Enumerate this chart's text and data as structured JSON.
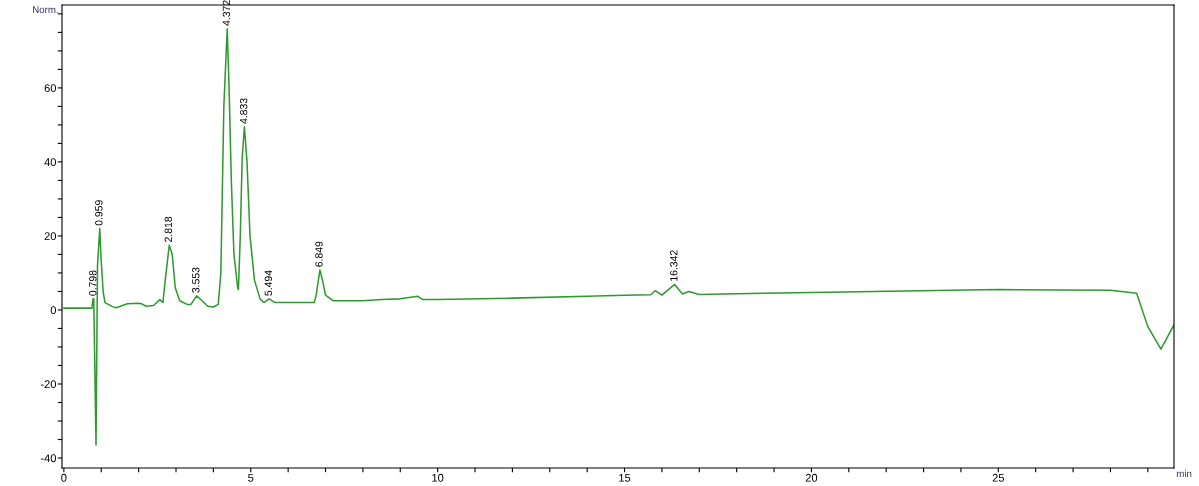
{
  "chart_data": {
    "type": "line",
    "ylabel": "Norm.",
    "xlabel": "min",
    "xlim": [
      -0.05,
      29.7
    ],
    "ylim": [
      -42.7,
      82.4
    ],
    "xticks": [
      0,
      {
        "value": 1,
        "label": null
      },
      {
        "value": 2,
        "label": null
      },
      {
        "value": 3,
        "label": null
      },
      {
        "value": 4,
        "label": null
      },
      5,
      {
        "value": 6,
        "label": null
      },
      {
        "value": 7,
        "label": null
      },
      {
        "value": 8,
        "label": null
      },
      {
        "value": 9,
        "label": null
      },
      10,
      {
        "value": 11,
        "label": null
      },
      {
        "value": 12,
        "label": null
      },
      {
        "value": 13,
        "label": null
      },
      {
        "value": 14,
        "label": null
      },
      15,
      {
        "value": 16,
        "label": null
      },
      {
        "value": 17,
        "label": null
      },
      {
        "value": 18,
        "label": null
      },
      {
        "value": 19,
        "label": null
      },
      20,
      {
        "value": 21,
        "label": null
      },
      {
        "value": 22,
        "label": null
      },
      {
        "value": 23,
        "label": null
      },
      {
        "value": 24,
        "label": null
      },
      25,
      {
        "value": 26,
        "label": null
      },
      {
        "value": 27,
        "label": null
      },
      {
        "value": 28,
        "label": null
      },
      {
        "value": 29,
        "label": null
      }
    ],
    "yticks": [
      -40,
      {
        "value": -35,
        "label": null
      },
      {
        "value": -30,
        "label": null
      },
      {
        "value": -25,
        "label": null
      },
      -20,
      {
        "value": -15,
        "label": null
      },
      {
        "value": -10,
        "label": null
      },
      {
        "value": -5,
        "label": null
      },
      0,
      {
        "value": 5,
        "label": null
      },
      {
        "value": 10,
        "label": null
      },
      {
        "value": 15,
        "label": null
      },
      20,
      {
        "value": 25,
        "label": null
      },
      {
        "value": 30,
        "label": null
      },
      {
        "value": 35,
        "label": null
      },
      40,
      {
        "value": 45,
        "label": null
      },
      {
        "value": 50,
        "label": null
      },
      {
        "value": 55,
        "label": null
      },
      60,
      {
        "value": 65,
        "label": null
      },
      {
        "value": 70,
        "label": null
      },
      {
        "value": 75,
        "label": null
      },
      {
        "value": 80,
        "label": null
      }
    ],
    "grid": false,
    "marker": "none",
    "line_style": "solid",
    "series": [
      {
        "color": "#2e9a2e",
        "x": [
          0,
          0.75,
          0.78,
          0.8,
          0.86,
          0.9,
          0.96,
          0.99,
          1.05,
          1.1,
          1.3,
          1.4,
          1.7,
          2.0,
          2.1,
          2.2,
          2.4,
          2.57,
          2.65,
          2.7,
          2.82,
          2.9,
          2.98,
          3.1,
          3.3,
          3.4,
          3.55,
          3.7,
          3.85,
          4.0,
          4.13,
          4.2,
          4.28,
          4.37,
          4.42,
          4.48,
          4.55,
          4.65,
          4.67,
          4.72,
          4.77,
          4.83,
          4.9,
          4.98,
          5.1,
          5.25,
          5.35,
          5.49,
          5.65,
          6.7,
          6.75,
          6.85,
          6.92,
          7.0,
          7.2,
          8.0,
          8.5,
          9.0,
          9.47,
          9.6,
          10,
          12,
          14,
          15,
          15.7,
          15.82,
          16.0,
          16.34,
          16.55,
          16.72,
          17.0,
          18,
          20,
          25,
          28,
          28.7,
          29.0,
          29.35,
          29.7
        ],
        "values": [
          0.5,
          0.5,
          3,
          3,
          -36.5,
          12,
          22,
          15,
          5,
          2,
          0.9,
          0.6,
          1.7,
          1.8,
          1.6,
          1,
          1.2,
          2.8,
          2,
          7,
          17.5,
          15,
          6,
          2.5,
          1.5,
          1.5,
          3.8,
          2.5,
          1,
          0.8,
          1.5,
          10,
          55,
          76,
          60,
          35,
          15,
          6,
          5.5,
          20,
          41,
          49.5,
          40,
          20,
          8,
          3,
          2,
          3,
          2,
          2,
          4,
          10.8,
          8,
          4,
          2.5,
          2.5,
          2.8,
          3,
          3.7,
          2.8,
          2.8,
          3.2,
          3.7,
          4.0,
          4.1,
          5.2,
          4.0,
          6.9,
          4.3,
          5.0,
          4.2,
          4.4,
          4.7,
          5.5,
          5.3,
          4.5,
          -4.5,
          -10.6,
          -4
        ]
      }
    ],
    "annotations": [
      {
        "text": "0.798",
        "x": 0.798,
        "y": 3
      },
      {
        "text": "0.959",
        "x": 0.959,
        "y": 22
      },
      {
        "text": "2.818",
        "x": 2.818,
        "y": 17.5
      },
      {
        "text": "3.553",
        "x": 3.553,
        "y": 3.8
      },
      {
        "text": "4.372",
        "x": 4.372,
        "y": 76
      },
      {
        "text": "4.833",
        "x": 4.833,
        "y": 49.5
      },
      {
        "text": "5.494",
        "x": 5.494,
        "y": 3
      },
      {
        "text": "6.849",
        "x": 6.849,
        "y": 10.8
      },
      {
        "text": "16.342",
        "x": 16.342,
        "y": 6.9
      }
    ]
  }
}
